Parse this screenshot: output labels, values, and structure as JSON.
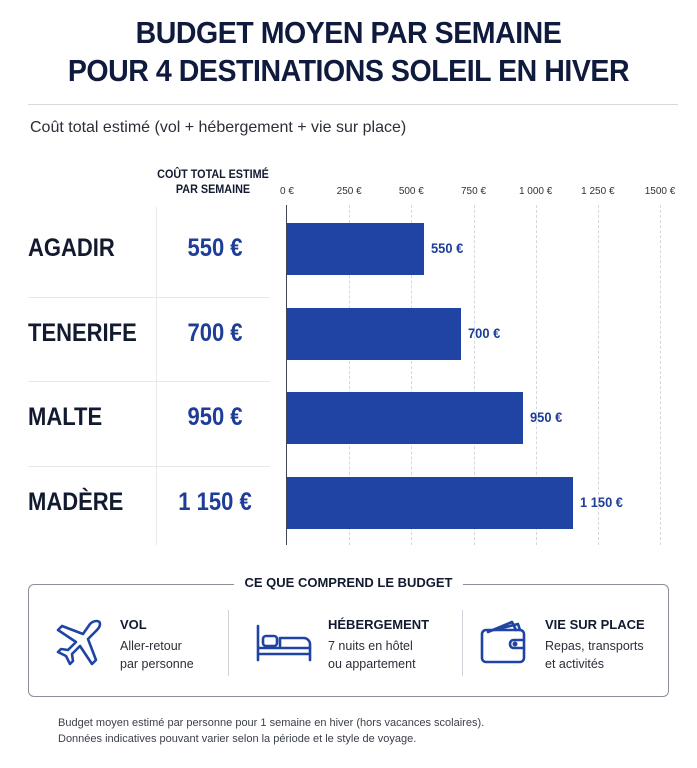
{
  "title": [
    "BUDGET MOYEN PAR SEMAINE",
    "POUR 4 DESTINATIONS SOLEIL EN HIVER"
  ],
  "subtitle": "Coût total estimé (vol + hébergement + vie sur place)",
  "column_header": [
    "COÛT TOTAL ESTIMÉ",
    "PAR SEMAINE"
  ],
  "colors": {
    "bar": "#1f44a3",
    "accent_text": "#1d3d98",
    "title": "#0f1a3d"
  },
  "chart_data": {
    "type": "bar",
    "orientation": "horizontal",
    "categories": [
      "AGADIR",
      "TENERIFE",
      "MALTE",
      "MADÈRE"
    ],
    "values": [
      550,
      700,
      950,
      1150
    ],
    "value_labels": [
      "550 €",
      "700 €",
      "950 €",
      "1 150 €"
    ],
    "xlim": [
      0,
      1500
    ],
    "ticks": [
      0,
      250,
      500,
      750,
      1000,
      1250,
      1500
    ],
    "tick_labels": [
      "0 €",
      "250 €",
      "500 €",
      "750 €",
      "1 000 €",
      "1 250 €",
      "1500 €"
    ],
    "grid": true
  },
  "budget_box": {
    "title": "CE QUE COMPREND LE BUDGET",
    "items": [
      {
        "icon": "airplane-icon",
        "heading": "VOL",
        "lines": [
          "Aller-retour",
          "par personne"
        ]
      },
      {
        "icon": "bed-icon",
        "heading": "HÉBERGEMENT",
        "lines": [
          "7 nuits en hôtel",
          "ou appartement"
        ]
      },
      {
        "icon": "wallet-icon",
        "heading": "VIE SUR PLACE",
        "lines": [
          "Repas, transports",
          "et activités"
        ]
      }
    ]
  },
  "footnote": [
    "Budget moyen estimé par personne pour 1 semaine en hiver (hors vacances scolaires).",
    "Données indicatives pouvant varier selon la période et le style de voyage."
  ]
}
